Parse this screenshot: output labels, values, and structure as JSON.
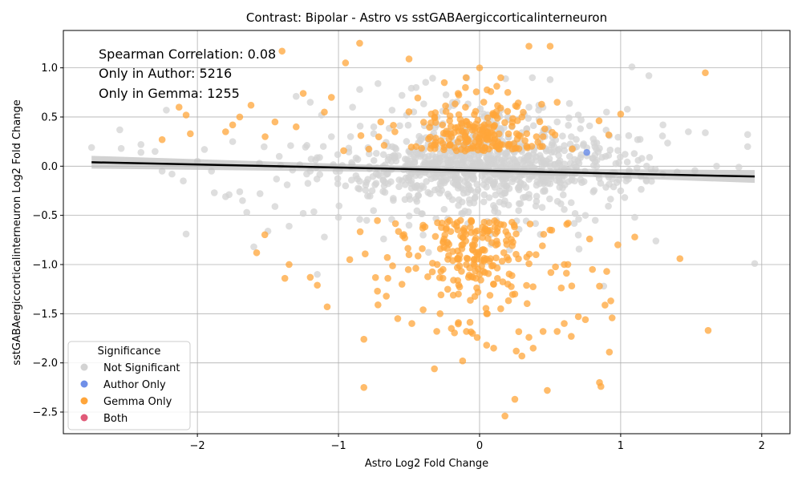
{
  "chart_data": {
    "type": "scatter",
    "title": "Contrast: Bipolar - Astro vs sstGABAergiccorticalinterneuron",
    "xlabel": "Astro Log2 Fold Change",
    "ylabel": "sstGABAergiccorticalinterneuron Log2 Fold Change",
    "xlim": [
      -2.95,
      2.2
    ],
    "ylim": [
      -2.72,
      1.38
    ],
    "xticks": [
      -2,
      -1,
      0,
      1,
      2
    ],
    "yticks": [
      -2.5,
      -2.0,
      -1.5,
      -1.0,
      -0.5,
      0.0,
      0.5,
      1.0
    ],
    "xtick_labels": [
      "−2",
      "−1",
      "0",
      "1",
      "2"
    ],
    "ytick_labels": [
      "−2.5",
      "−2.0",
      "−1.5",
      "−1.0",
      "−0.5",
      "0.0",
      "0.5",
      "1.0"
    ],
    "grid": true,
    "annotations": [
      "Spearman Correlation: 0.08",
      "Only in Author: 5216",
      "Only in Gemma: 1255"
    ],
    "legend": {
      "title": "Significance",
      "placement": "lower-left",
      "entries": [
        {
          "label": "Not Significant",
          "color": "#d3d3d3"
        },
        {
          "label": "Author Only",
          "color": "#6f8fe8"
        },
        {
          "label": "Gemma Only",
          "color": "#ffa53a"
        },
        {
          "label": "Both",
          "color": "#e05a78"
        }
      ]
    },
    "regression": {
      "x": [
        -2.75,
        1.95
      ],
      "y": [
        0.04,
        -0.105
      ],
      "color": "#000000"
    },
    "series": [
      {
        "name": "Not Significant",
        "color": "#d3d3d3",
        "points": [
          [
            -2.75,
            0.19
          ],
          [
            -2.55,
            0.37
          ],
          [
            -2.54,
            0.18
          ],
          [
            -2.4,
            0.22
          ],
          [
            -2.4,
            0.14
          ],
          [
            -2.3,
            0.15
          ],
          [
            -2.22,
            0.57
          ],
          [
            -2.25,
            -0.05
          ],
          [
            -2.18,
            -0.08
          ],
          [
            -2.1,
            -0.15
          ],
          [
            -2.08,
            -0.69
          ],
          [
            -2.0,
            0.05
          ],
          [
            -1.95,
            0.17
          ],
          [
            -1.9,
            -0.05
          ],
          [
            -1.88,
            -0.27
          ],
          [
            -1.8,
            -0.31
          ],
          [
            -1.75,
            0.25
          ],
          [
            -1.7,
            -0.26
          ],
          [
            -1.68,
            -0.35
          ],
          [
            -1.65,
            -0.47
          ],
          [
            -1.6,
            -0.82
          ],
          [
            -1.56,
            0.03
          ],
          [
            -1.5,
            -0.66
          ],
          [
            -1.45,
            -0.41
          ],
          [
            -1.42,
            0.1
          ],
          [
            -1.35,
            -0.61
          ],
          [
            -1.3,
            0.71
          ],
          [
            -1.25,
            -0.48
          ],
          [
            -1.2,
            0.65
          ],
          [
            -1.15,
            -1.1
          ],
          [
            -1.12,
            0.52
          ],
          [
            -1.1,
            -0.72
          ],
          [
            -1.05,
            0.3
          ],
          [
            -1.0,
            -0.52
          ],
          [
            -0.95,
            -0.2
          ],
          [
            -0.9,
            0.6
          ],
          [
            -0.85,
            0.78
          ],
          [
            -0.8,
            -0.55
          ],
          [
            -0.75,
            0.4
          ],
          [
            -0.72,
            0.84
          ],
          [
            -0.68,
            -0.74
          ],
          [
            -0.62,
            0.57
          ],
          [
            -0.55,
            0.72
          ],
          [
            -0.5,
            -0.6
          ],
          [
            -0.45,
            0.8
          ],
          [
            -0.35,
            -0.28
          ],
          [
            -0.3,
            0.5
          ],
          [
            -0.22,
            0.6
          ],
          [
            -0.15,
            -0.4
          ],
          [
            -0.05,
            0.3
          ],
          [
            0.05,
            0.45
          ],
          [
            0.12,
            -0.55
          ],
          [
            0.2,
            0.5
          ],
          [
            0.28,
            -0.38
          ],
          [
            0.35,
            0.6
          ],
          [
            0.42,
            0.62
          ],
          [
            0.5,
            0.88
          ],
          [
            0.55,
            0.45
          ],
          [
            0.6,
            -0.44
          ],
          [
            0.65,
            0.3
          ],
          [
            0.7,
            0.52
          ],
          [
            0.72,
            0.47
          ],
          [
            0.75,
            -0.5
          ],
          [
            0.78,
            0.41
          ],
          [
            0.8,
            0.08
          ],
          [
            0.82,
            -0.55
          ],
          [
            0.85,
            0.18
          ],
          [
            0.9,
            0.55
          ],
          [
            0.92,
            0.31
          ],
          [
            0.95,
            -0.21
          ],
          [
            0.98,
            0.16
          ],
          [
            1.0,
            -0.25
          ],
          [
            1.08,
            1.01
          ],
          [
            1.1,
            -0.52
          ],
          [
            1.12,
            0.27
          ],
          [
            1.15,
            0.08
          ],
          [
            1.2,
            0.92
          ],
          [
            1.25,
            -0.76
          ],
          [
            1.3,
            0.42
          ],
          [
            1.4,
            -0.06
          ],
          [
            1.48,
            0.35
          ],
          [
            1.6,
            0.34
          ],
          [
            1.68,
            0.0
          ],
          [
            1.95,
            -0.99
          ],
          [
            0.88,
            -1.22
          ],
          [
            0.7,
            -0.7
          ],
          [
            -0.2,
            0.15
          ],
          [
            0.15,
            -0.2
          ],
          [
            -0.6,
            0.1
          ],
          [
            0.4,
            -0.1
          ],
          [
            -1.2,
            -0.05
          ],
          [
            1.05,
            -0.1
          ],
          [
            -0.4,
            -0.7
          ],
          [
            0.3,
            0.15
          ]
        ]
      },
      {
        "name": "Gemma Only",
        "color": "#ffa53a",
        "points": [
          [
            -2.25,
            0.27
          ],
          [
            -2.13,
            0.6
          ],
          [
            -2.08,
            0.52
          ],
          [
            -2.05,
            0.33
          ],
          [
            -1.8,
            0.35
          ],
          [
            -1.75,
            0.42
          ],
          [
            -1.7,
            0.5
          ],
          [
            -1.62,
            0.62
          ],
          [
            -1.58,
            -0.88
          ],
          [
            -1.52,
            0.3
          ],
          [
            -1.45,
            0.45
          ],
          [
            -1.4,
            1.17
          ],
          [
            -1.38,
            -1.14
          ],
          [
            -1.35,
            -1.0
          ],
          [
            -1.3,
            0.4
          ],
          [
            -1.25,
            0.74
          ],
          [
            -1.2,
            -1.13
          ],
          [
            -1.15,
            -1.21
          ],
          [
            -1.1,
            0.55
          ],
          [
            -1.08,
            -1.43
          ],
          [
            -1.05,
            0.7
          ],
          [
            -0.95,
            1.05
          ],
          [
            -0.92,
            -0.95
          ],
          [
            -0.85,
            1.25
          ],
          [
            -0.82,
            -1.76
          ],
          [
            -0.82,
            -2.25
          ],
          [
            -0.72,
            -1.41
          ],
          [
            -0.65,
            -1.14
          ],
          [
            -0.58,
            -1.55
          ],
          [
            -0.55,
            -1.2
          ],
          [
            -0.5,
            1.09
          ],
          [
            -0.48,
            -1.6
          ],
          [
            -0.4,
            -1.46
          ],
          [
            -0.32,
            -2.06
          ],
          [
            -0.28,
            -1.5
          ],
          [
            -0.2,
            -1.65
          ],
          [
            -0.15,
            -1.59
          ],
          [
            -0.12,
            -1.98
          ],
          [
            -0.05,
            -1.7
          ],
          [
            0.05,
            -1.82
          ],
          [
            0.0,
            1.0
          ],
          [
            0.1,
            -1.85
          ],
          [
            0.15,
            -1.45
          ],
          [
            0.18,
            -2.54
          ],
          [
            0.25,
            -2.37
          ],
          [
            0.26,
            -1.88
          ],
          [
            0.3,
            -1.93
          ],
          [
            0.35,
            -1.74
          ],
          [
            0.35,
            1.22
          ],
          [
            0.38,
            -1.85
          ],
          [
            0.45,
            -1.68
          ],
          [
            0.48,
            -2.28
          ],
          [
            0.5,
            1.22
          ],
          [
            0.55,
            -1.68
          ],
          [
            0.6,
            -1.6
          ],
          [
            0.65,
            -1.73
          ],
          [
            0.7,
            -1.53
          ],
          [
            0.75,
            -1.56
          ],
          [
            0.78,
            -0.74
          ],
          [
            0.8,
            -1.05
          ],
          [
            0.85,
            -2.2
          ],
          [
            0.86,
            -2.24
          ],
          [
            0.85,
            -1.22
          ],
          [
            0.92,
            -1.89
          ],
          [
            0.93,
            -1.37
          ],
          [
            0.98,
            -0.8
          ],
          [
            1.0,
            0.53
          ],
          [
            1.1,
            -0.72
          ],
          [
            1.42,
            -0.94
          ],
          [
            1.6,
            0.95
          ],
          [
            1.62,
            -1.67
          ],
          [
            0.2,
            0.75
          ],
          [
            -0.1,
            0.6
          ],
          [
            0.1,
            0.4
          ],
          [
            -0.2,
            0.3
          ],
          [
            0.3,
            0.5
          ],
          [
            -0.05,
            -0.8
          ],
          [
            0.1,
            -1.2
          ],
          [
            -0.3,
            -1.0
          ],
          [
            0.25,
            -1.3
          ],
          [
            -0.15,
            -1.3
          ],
          [
            0.05,
            -1.5
          ],
          [
            0.4,
            -0.9
          ],
          [
            -0.4,
            -0.6
          ],
          [
            0.2,
            -0.7
          ],
          [
            -0.6,
            0.35
          ],
          [
            0.45,
            0.3
          ],
          [
            -0.25,
            0.85
          ],
          [
            0.15,
            0.9
          ],
          [
            -0.45,
            0.2
          ],
          [
            0.55,
            0.65
          ],
          [
            -0.7,
            0.45
          ],
          [
            0.6,
            -1.0
          ],
          [
            -0.5,
            -0.9
          ],
          [
            0.0,
            -1.1
          ],
          [
            -0.1,
            0.8
          ]
        ]
      },
      {
        "name": "Author Only",
        "color": "#6f8fe8",
        "points": [
          [
            0.76,
            0.14
          ]
        ]
      },
      {
        "name": "Both",
        "color": "#e05a78",
        "points": []
      }
    ]
  }
}
